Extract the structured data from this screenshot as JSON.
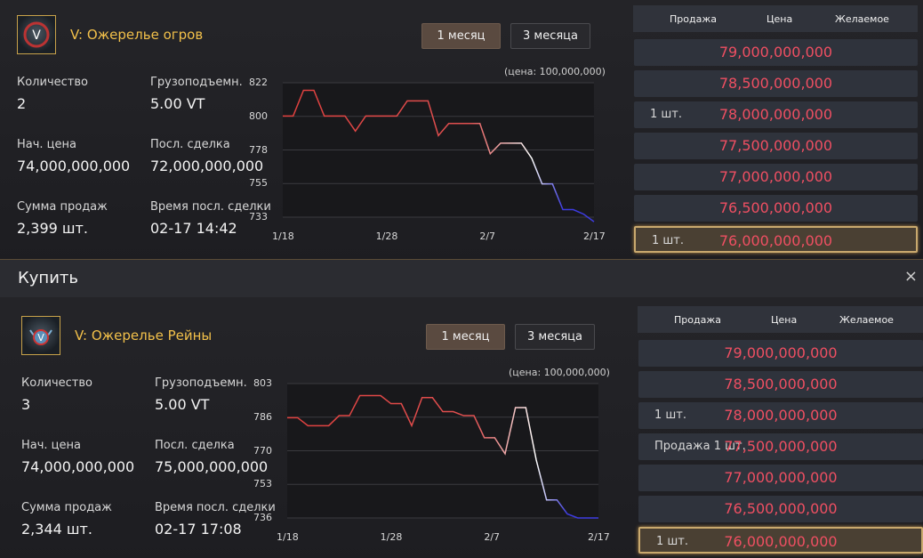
{
  "panels": [
    {
      "item_name": "V: Ожерелье огров",
      "icon": "ogre-necklace-icon",
      "tabs": [
        "1 месяц",
        "3 месяца"
      ],
      "stats": [
        {
          "label": "Количество",
          "value": "2"
        },
        {
          "label": "Грузоподъемн.",
          "value": "5.00 VT"
        },
        {
          "label": "Нач. цена",
          "value": "74,000,000,000"
        },
        {
          "label": "Посл. сделка",
          "value": "72,000,000,000"
        },
        {
          "label": "Сумма продаж",
          "value": "2,399 шт."
        },
        {
          "label": "Время посл. сделки",
          "value": "02-17 14:42"
        }
      ],
      "chart_note": "(цена: 100,000,000)",
      "chart_data": {
        "type": "line",
        "y_ticks": [
          "822",
          "800",
          "778",
          "755",
          "733"
        ],
        "x_ticks": [
          "1/18",
          "1/28",
          "2/7",
          "2/17"
        ],
        "ylim": [
          733,
          822
        ],
        "x": [
          0,
          1,
          2,
          3,
          4,
          5,
          6,
          7,
          8,
          9,
          10,
          11,
          12,
          13,
          14,
          15,
          16,
          17,
          18,
          19,
          20,
          21,
          22,
          23,
          24,
          25,
          26,
          27,
          28,
          29,
          30
        ],
        "values": [
          800,
          800,
          817,
          817,
          800,
          800,
          800,
          790,
          800,
          800,
          800,
          800,
          810,
          810,
          810,
          787,
          795,
          795,
          795,
          795,
          775,
          782,
          782,
          782,
          772,
          755,
          755,
          738,
          738,
          735,
          730
        ]
      },
      "orders": {
        "headers": [
          "Продажа",
          "Цена",
          "Желаемое"
        ],
        "rows": [
          {
            "qty": "",
            "price": "79,000,000,000",
            "highlight": false
          },
          {
            "qty": "",
            "price": "78,500,000,000",
            "highlight": false
          },
          {
            "qty": "1 шт.",
            "price": "78,000,000,000",
            "highlight": false
          },
          {
            "qty": "",
            "price": "77,500,000,000",
            "highlight": false
          },
          {
            "qty": "",
            "price": "77,000,000,000",
            "highlight": false
          },
          {
            "qty": "",
            "price": "76,500,000,000",
            "highlight": false
          },
          {
            "qty": "1 шт.",
            "price": "76,000,000,000",
            "highlight": true
          }
        ]
      }
    },
    {
      "item_name": "V: Ожерелье Рейны",
      "icon": "reina-necklace-icon",
      "tabs": [
        "1 месяц",
        "3 месяца"
      ],
      "stats": [
        {
          "label": "Количество",
          "value": "3"
        },
        {
          "label": "Грузоподъемн.",
          "value": "5.00 VT"
        },
        {
          "label": "Нач. цена",
          "value": "74,000,000,000"
        },
        {
          "label": "Посл. сделка",
          "value": "75,000,000,000"
        },
        {
          "label": "Сумма продаж",
          "value": "2,344 шт."
        },
        {
          "label": "Время посл. сделки",
          "value": "02-17 17:08"
        }
      ],
      "chart_note": "(цена: 100,000,000)",
      "chart_data": {
        "type": "line",
        "y_ticks": [
          "803",
          "786",
          "770",
          "753",
          "736"
        ],
        "x_ticks": [
          "1/18",
          "1/28",
          "2/7",
          "2/17"
        ],
        "ylim": [
          736,
          803
        ],
        "x": [
          0,
          1,
          2,
          3,
          4,
          5,
          6,
          7,
          8,
          9,
          10,
          11,
          12,
          13,
          14,
          15,
          16,
          17,
          18,
          19,
          20,
          21,
          22,
          23,
          24,
          25,
          26,
          27,
          28,
          29,
          30
        ],
        "values": [
          786,
          786,
          782,
          782,
          782,
          787,
          787,
          797,
          797,
          797,
          793,
          793,
          782,
          796,
          796,
          789,
          789,
          787,
          787,
          776,
          776,
          768,
          791,
          791,
          765,
          745,
          745,
          738,
          736,
          736,
          736
        ]
      },
      "orders": {
        "headers": [
          "Продажа",
          "Цена",
          "Желаемое"
        ],
        "rows": [
          {
            "qty": "",
            "price": "79,000,000,000",
            "highlight": false
          },
          {
            "qty": "",
            "price": "78,500,000,000",
            "highlight": false
          },
          {
            "qty": "1 шт.",
            "price": "78,000,000,000",
            "highlight": false
          },
          {
            "qty": "Продажа 1 шт.",
            "price": "77,500,000,000",
            "highlight": false
          },
          {
            "qty": "",
            "price": "77,000,000,000",
            "highlight": false
          },
          {
            "qty": "",
            "price": "76,500,000,000",
            "highlight": false
          },
          {
            "qty": "1 шт.",
            "price": "76,000,000,000",
            "highlight": true
          }
        ]
      }
    }
  ],
  "buy_bar": {
    "title": "Купить",
    "close": "×"
  },
  "colors": {
    "price_red": "#ef4f62",
    "gold": "#f2c04a",
    "line_red": "#e0403e",
    "line_blue": "#3d3be0"
  }
}
